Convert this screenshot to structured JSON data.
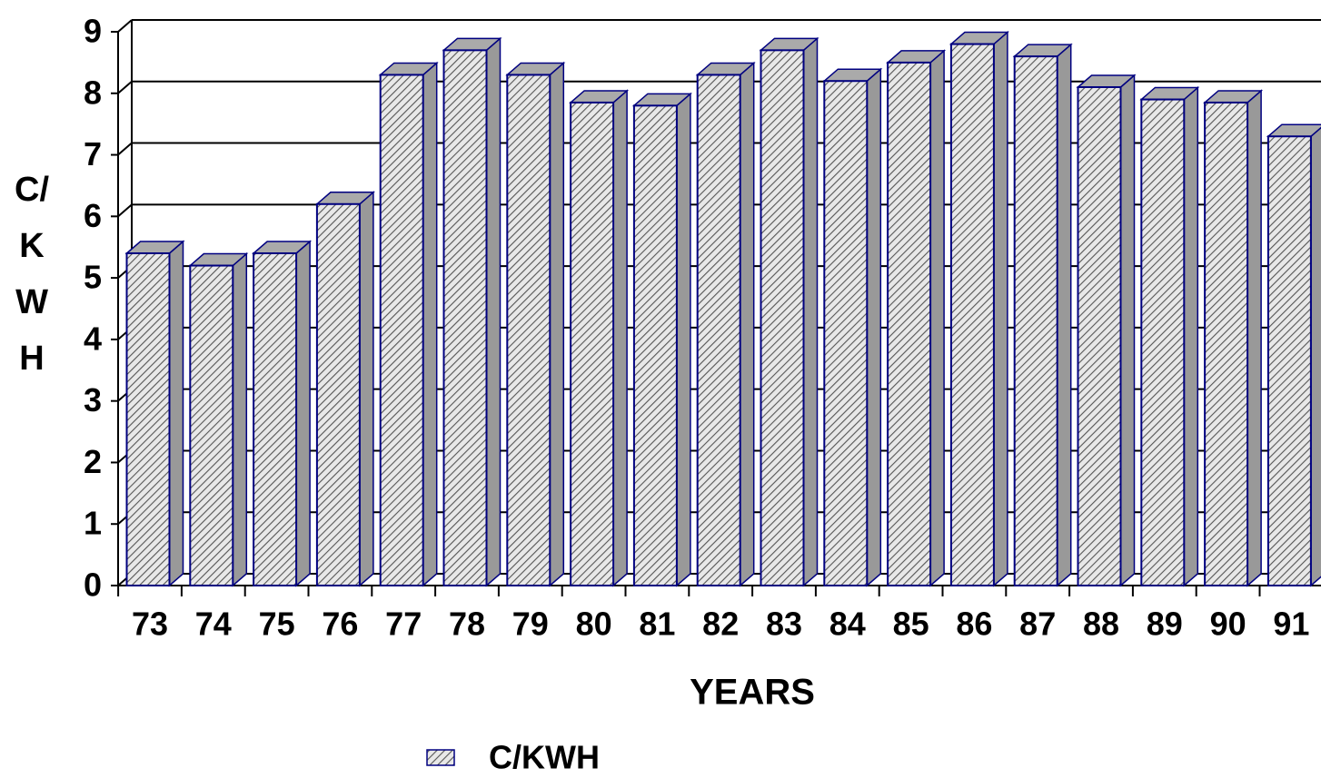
{
  "chart_data": {
    "type": "bar3d",
    "x_label": "YEARS",
    "y_label": "C/KWH",
    "categories": [
      "73",
      "74",
      "75",
      "76",
      "77",
      "78",
      "79",
      "80",
      "81",
      "82",
      "83",
      "84",
      "85",
      "86",
      "87",
      "88",
      "89",
      "90",
      "91"
    ],
    "series": [
      {
        "name": "C/KWH",
        "color": "#000080",
        "values": [
          5.4,
          5.2,
          5.4,
          6.2,
          8.3,
          8.7,
          8.3,
          7.85,
          7.8,
          8.3,
          8.7,
          8.2,
          8.5,
          8.8,
          8.6,
          8.1,
          7.9,
          7.85,
          7.3
        ]
      }
    ],
    "ylim": [
      0,
      9
    ],
    "yticks": [
      0,
      1,
      2,
      3,
      4,
      5,
      6,
      7,
      8,
      9
    ],
    "grid": true,
    "legend": "bottom"
  }
}
